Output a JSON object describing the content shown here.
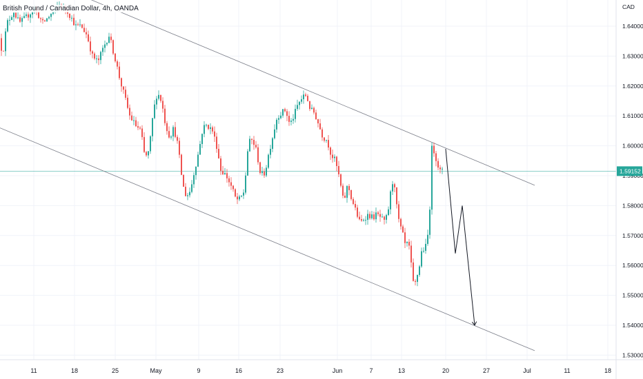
{
  "chart_data": {
    "type": "candlestick",
    "title": "British Pound / Canadian Dollar, 4h, OANDA",
    "currency": "CAD",
    "y_ticks": [
      "1.64000",
      "1.63000",
      "1.62000",
      "1.61000",
      "1.60000",
      "1.59000",
      "1.58000",
      "1.57000",
      "1.56000",
      "1.55000",
      "1.54000",
      "1.53000"
    ],
    "x_ticks": [
      "11",
      "18",
      "25",
      "May",
      "9",
      "16",
      "23",
      "Jun",
      "7",
      "13",
      "20",
      "27",
      "Jul",
      "11",
      "18"
    ],
    "ylim": [
      1.5295,
      1.65
    ],
    "current_price": 1.59152,
    "current_price_label": "1.59152",
    "colors": {
      "up": "#26a69a",
      "down": "#ef5350",
      "channel": "#787b86",
      "projection": "#131722",
      "price_line": "#26a69a"
    },
    "grid": true,
    "path": [
      [
        0,
        1.636
      ],
      [
        6,
        1.631
      ],
      [
        12,
        1.641
      ],
      [
        22,
        1.645
      ],
      [
        30,
        1.641
      ],
      [
        40,
        1.643
      ],
      [
        52,
        1.646
      ],
      [
        64,
        1.641
      ],
      [
        76,
        1.644
      ],
      [
        88,
        1.647
      ],
      [
        100,
        1.645
      ],
      [
        112,
        1.64
      ],
      [
        120,
        1.64
      ],
      [
        128,
        1.637
      ],
      [
        136,
        1.63
      ],
      [
        144,
        1.628
      ],
      [
        152,
        1.633
      ],
      [
        160,
        1.637
      ],
      [
        168,
        1.63
      ],
      [
        176,
        1.622
      ],
      [
        182,
        1.617
      ],
      [
        190,
        1.61
      ],
      [
        198,
        1.607
      ],
      [
        206,
        1.605
      ],
      [
        212,
        1.596
      ],
      [
        218,
        1.598
      ],
      [
        224,
        1.611
      ],
      [
        230,
        1.618
      ],
      [
        236,
        1.615
      ],
      [
        242,
        1.607
      ],
      [
        248,
        1.603
      ],
      [
        254,
        1.606
      ],
      [
        260,
        1.6
      ],
      [
        264,
        1.592
      ],
      [
        268,
        1.586
      ],
      [
        272,
        1.583
      ],
      [
        278,
        1.585
      ],
      [
        284,
        1.592
      ],
      [
        290,
        1.598
      ],
      [
        296,
        1.606
      ],
      [
        302,
        1.607
      ],
      [
        310,
        1.605
      ],
      [
        316,
        1.6
      ],
      [
        322,
        1.592
      ],
      [
        330,
        1.59
      ],
      [
        338,
        1.586
      ],
      [
        344,
        1.582
      ],
      [
        350,
        1.582
      ],
      [
        356,
        1.585
      ],
      [
        362,
        1.601
      ],
      [
        368,
        1.602
      ],
      [
        374,
        1.598
      ],
      [
        380,
        1.59
      ],
      [
        386,
        1.591
      ],
      [
        392,
        1.598
      ],
      [
        398,
        1.604
      ],
      [
        404,
        1.61
      ],
      [
        410,
        1.611
      ],
      [
        416,
        1.612
      ],
      [
        422,
        1.607
      ],
      [
        428,
        1.61
      ],
      [
        434,
        1.614
      ],
      [
        440,
        1.616
      ],
      [
        446,
        1.617
      ],
      [
        452,
        1.612
      ],
      [
        458,
        1.611
      ],
      [
        464,
        1.607
      ],
      [
        470,
        1.603
      ],
      [
        476,
        1.602
      ],
      [
        482,
        1.597
      ],
      [
        488,
        1.595
      ],
      [
        494,
        1.589
      ],
      [
        500,
        1.581
      ],
      [
        506,
        1.587
      ],
      [
        512,
        1.582
      ],
      [
        518,
        1.578
      ],
      [
        524,
        1.574
      ],
      [
        530,
        1.576
      ],
      [
        536,
        1.577
      ],
      [
        542,
        1.576
      ],
      [
        548,
        1.577
      ],
      [
        554,
        1.576
      ],
      [
        560,
        1.574
      ],
      [
        566,
        1.58
      ],
      [
        570,
        1.588
      ],
      [
        574,
        1.587
      ],
      [
        578,
        1.577
      ],
      [
        582,
        1.573
      ],
      [
        586,
        1.57
      ],
      [
        590,
        1.566
      ],
      [
        594,
        1.568
      ],
      [
        598,
        1.56
      ],
      [
        602,
        1.552
      ],
      [
        606,
        1.556
      ],
      [
        610,
        1.56
      ],
      [
        614,
        1.566
      ],
      [
        618,
        1.565
      ],
      [
        622,
        1.57
      ],
      [
        626,
        1.583
      ],
      [
        628,
        1.599
      ],
      [
        632,
        1.598
      ],
      [
        636,
        1.594
      ],
      [
        640,
        1.5915
      ]
    ],
    "projection": [
      [
        646,
        1.599
      ],
      [
        660,
        1.564
      ],
      [
        670,
        1.58
      ],
      [
        688,
        1.54
      ]
    ],
    "channel_upper": [
      [
        120,
        1.65
      ],
      [
        775,
        1.5868
      ]
    ],
    "channel_lower": [
      [
        0,
        1.606
      ],
      [
        775,
        1.5315
      ]
    ]
  }
}
